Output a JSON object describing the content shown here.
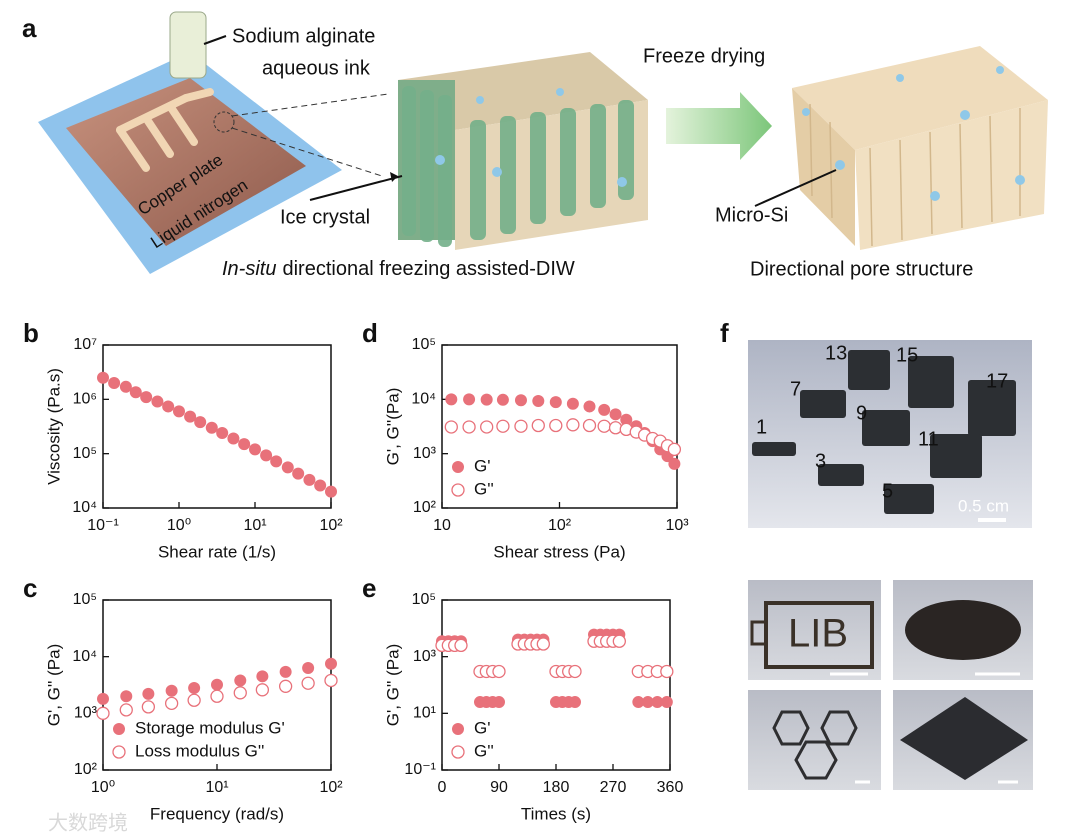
{
  "panel_a": {
    "label": "a",
    "ink_line1": "Sodium alginate",
    "ink_line2": "aqueous ink",
    "copper_plate": "Copper plate",
    "liquid_nitrogen": "Liquid nitrogen",
    "ice_crystal": "Ice crystal",
    "caption_left_italic": "In-situ",
    "caption_left_rest": "directional freezing assisted-DIW",
    "freeze_drying": "Freeze drying",
    "micro_si": "Micro-Si",
    "caption_right": "Directional pore structure"
  },
  "panel_f": {
    "label": "f",
    "sample_numbers": [
      "13",
      "15",
      "17",
      "7",
      "9",
      "11",
      "1",
      "3",
      "5"
    ],
    "scale_bar": "0.5 cm",
    "lib_text": "LIB"
  },
  "watermark": "大数跨境",
  "chart_data": [
    {
      "type": "scatter",
      "panel": "b",
      "xlabel": "Shear rate (1/s)",
      "ylabel": "Viscosity (Pa.s)",
      "xscale": "log",
      "yscale": "log",
      "x": [
        0.1,
        0.14,
        0.2,
        0.27,
        0.37,
        0.52,
        0.72,
        1,
        1.4,
        1.9,
        2.7,
        3.7,
        5.2,
        7.2,
        10,
        14,
        19,
        27,
        37,
        52,
        72,
        100
      ],
      "values": [
        2500000,
        2000000,
        1700000,
        1350000,
        1100000,
        910000,
        740000,
        600000,
        480000,
        380000,
        300000,
        240000,
        190000,
        150000,
        120000,
        93000,
        72000,
        56000,
        43000,
        33000,
        26000,
        20000
      ],
      "color": "#e8717a",
      "marker": "filled",
      "xlim": [
        0.1,
        100
      ],
      "xticks": [
        {
          "value": 0.1,
          "label": "10⁻¹"
        },
        {
          "value": 1,
          "label": "10⁰"
        },
        {
          "value": 10,
          "label": "10¹"
        },
        {
          "value": 100,
          "label": "10²"
        }
      ],
      "ylim": [
        10000,
        10000000
      ],
      "yticks": [
        {
          "value": 10000,
          "label": "10⁴"
        },
        {
          "value": 100000,
          "label": "10⁵"
        },
        {
          "value": 1000000,
          "label": "10⁶"
        },
        {
          "value": 10000000,
          "label": "10⁷"
        }
      ]
    },
    {
      "type": "scatter",
      "panel": "c",
      "xlabel": "Frequency (rad/s)",
      "ylabel": "G', G'' (Pa)",
      "xscale": "log",
      "yscale": "log",
      "legend": "lower left",
      "x": [
        1,
        1.6,
        2.5,
        4,
        6.3,
        10,
        16,
        25,
        40,
        63,
        100
      ],
      "series": [
        {
          "name": "Storage modulus G'",
          "color": "#e8717a",
          "marker": "filled",
          "values": [
            1800,
            2000,
            2200,
            2500,
            2800,
            3200,
            3800,
            4500,
            5400,
            6300,
            7500
          ]
        },
        {
          "name": "Loss modulus G''",
          "color": "#e8717a",
          "marker": "open",
          "values": [
            1000,
            1150,
            1300,
            1500,
            1700,
            2000,
            2300,
            2600,
            3000,
            3400,
            3800
          ]
        }
      ],
      "xlim": [
        1,
        100
      ],
      "xticks": [
        {
          "value": 1,
          "label": "10⁰"
        },
        {
          "value": 10,
          "label": "10¹"
        },
        {
          "value": 100,
          "label": "10²"
        }
      ],
      "ylim": [
        100,
        100000
      ],
      "yticks": [
        {
          "value": 100,
          "label": "10²"
        },
        {
          "value": 1000,
          "label": "10³"
        },
        {
          "value": 10000,
          "label": "10⁴"
        },
        {
          "value": 100000,
          "label": "10⁵"
        }
      ]
    },
    {
      "type": "scatter",
      "panel": "d",
      "xlabel": "Shear stress (Pa)",
      "ylabel": "G', G''(Pa)",
      "xscale": "log",
      "yscale": "log",
      "legend": "lower left",
      "x": [
        12,
        17,
        24,
        33,
        47,
        66,
        93,
        130,
        180,
        240,
        300,
        370,
        450,
        530,
        620,
        720,
        830,
        950
      ],
      "series": [
        {
          "name": "G'",
          "color": "#e8717a",
          "marker": "filled",
          "values": [
            10000,
            10000,
            9900,
            9800,
            9600,
            9300,
            8900,
            8300,
            7400,
            6400,
            5300,
            4200,
            3200,
            2400,
            1700,
            1200,
            900,
            650
          ]
        },
        {
          "name": "G''",
          "color": "#e8717a",
          "marker": "open",
          "values": [
            3100,
            3100,
            3100,
            3200,
            3200,
            3300,
            3300,
            3400,
            3300,
            3200,
            3000,
            2800,
            2500,
            2200,
            1900,
            1700,
            1400,
            1200
          ]
        }
      ],
      "xlim": [
        10,
        1000
      ],
      "xticks": [
        {
          "value": 10,
          "label": "10"
        },
        {
          "value": 100,
          "label": "10²"
        },
        {
          "value": 1000,
          "label": "10³"
        }
      ],
      "ylim": [
        100,
        100000
      ],
      "yticks": [
        {
          "value": 100,
          "label": "10²"
        },
        {
          "value": 1000,
          "label": "10³"
        },
        {
          "value": 10000,
          "label": "10⁴"
        },
        {
          "value": 100000,
          "label": "10⁵"
        }
      ]
    },
    {
      "type": "scatter",
      "panel": "e",
      "xlabel": "Times (s)",
      "ylabel": "G', G'' (Pa)",
      "xscale": "linear",
      "yscale": "log",
      "legend": "lower left",
      "x": [
        0,
        10,
        20,
        30,
        60,
        70,
        80,
        90,
        120,
        130,
        140,
        150,
        160,
        180,
        190,
        200,
        210,
        240,
        250,
        260,
        270,
        280,
        310,
        325,
        340,
        355
      ],
      "series": [
        {
          "name": "G'",
          "color": "#e8717a",
          "marker": "filled",
          "values": [
            3500,
            3500,
            3500,
            3500,
            25,
            25,
            25,
            25,
            4000,
            4000,
            4000,
            4000,
            4000,
            25,
            25,
            25,
            25,
            6000,
            6000,
            6000,
            6000,
            6000,
            25,
            25,
            25,
            25
          ]
        },
        {
          "name": "G''",
          "color": "#e8717a",
          "marker": "open",
          "values": [
            2500,
            2500,
            2500,
            2500,
            300,
            300,
            300,
            300,
            2800,
            2800,
            2800,
            2800,
            2800,
            300,
            300,
            300,
            300,
            3500,
            3500,
            3500,
            3500,
            3500,
            300,
            300,
            300,
            300
          ]
        }
      ],
      "xlim": [
        0,
        360
      ],
      "xticks": [
        0,
        90,
        180,
        270,
        360
      ],
      "ylim": [
        0.1,
        100000
      ],
      "yticks": [
        {
          "value": 0.1,
          "label": "10⁻¹"
        },
        {
          "value": 10,
          "label": "10¹"
        },
        {
          "value": 1000,
          "label": "10³"
        },
        {
          "value": 100000,
          "label": "10⁵"
        }
      ]
    }
  ]
}
